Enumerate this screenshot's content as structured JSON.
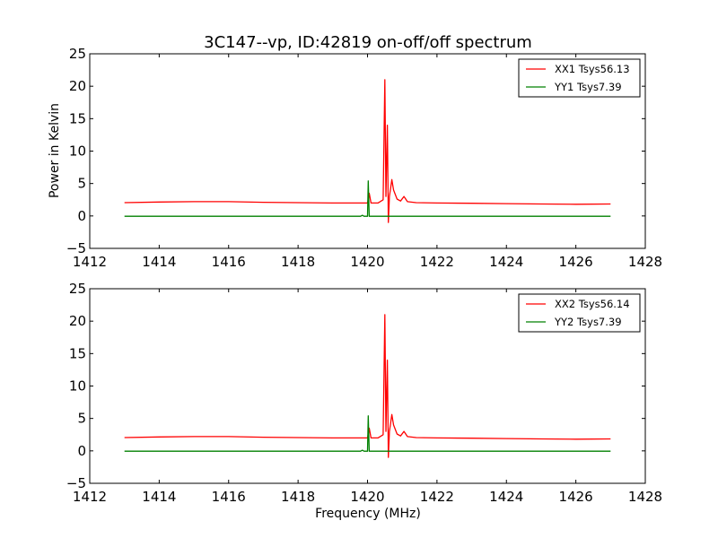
{
  "figure": {
    "title": "3C147--vp, ID:42819 on-off/off spectrum",
    "ylabel": "Power in Kelvin",
    "xlabel": "Frequency (MHz)",
    "colors": {
      "red": "#ff0000",
      "green": "#008000"
    }
  },
  "chart_data": [
    {
      "type": "line",
      "title": "3C147--vp, ID:42819 on-off/off spectrum",
      "xlabel": "",
      "ylabel": "Power in Kelvin",
      "xlim": [
        1412,
        1428
      ],
      "ylim": [
        -5,
        25
      ],
      "xticks": [
        1412,
        1414,
        1416,
        1418,
        1420,
        1422,
        1424,
        1426,
        1428
      ],
      "yticks": [
        -5,
        0,
        5,
        10,
        15,
        20,
        25
      ],
      "grid": false,
      "legend_position": "top-right",
      "series": [
        {
          "name": "XX1 Tsys56.13",
          "color": "#ff0000",
          "points": [
            [
              1413.0,
              2.05
            ],
            [
              1414.0,
              2.15
            ],
            [
              1415.0,
              2.2
            ],
            [
              1416.0,
              2.2
            ],
            [
              1417.0,
              2.1
            ],
            [
              1418.0,
              2.05
            ],
            [
              1419.0,
              2.0
            ],
            [
              1419.8,
              2.0
            ],
            [
              1420.0,
              2.0
            ],
            [
              1420.05,
              3.5
            ],
            [
              1420.1,
              2.0
            ],
            [
              1420.3,
              2.0
            ],
            [
              1420.45,
              2.5
            ],
            [
              1420.5,
              21.0
            ],
            [
              1420.53,
              3.0
            ],
            [
              1420.57,
              14.0
            ],
            [
              1420.6,
              -1.0
            ],
            [
              1420.63,
              3.0
            ],
            [
              1420.7,
              5.6
            ],
            [
              1420.75,
              4.0
            ],
            [
              1420.85,
              2.6
            ],
            [
              1420.95,
              2.3
            ],
            [
              1421.05,
              3.0
            ],
            [
              1421.15,
              2.2
            ],
            [
              1421.4,
              2.05
            ],
            [
              1422.0,
              2.0
            ],
            [
              1423.0,
              1.95
            ],
            [
              1424.0,
              1.9
            ],
            [
              1425.0,
              1.85
            ],
            [
              1426.0,
              1.8
            ],
            [
              1427.0,
              1.85
            ]
          ]
        },
        {
          "name": "YY1 Tsys7.39",
          "color": "#008000",
          "points": [
            [
              1413.0,
              -0.05
            ],
            [
              1415.0,
              -0.05
            ],
            [
              1417.0,
              -0.05
            ],
            [
              1419.0,
              -0.05
            ],
            [
              1419.8,
              -0.05
            ],
            [
              1419.85,
              0.1
            ],
            [
              1419.9,
              -0.05
            ],
            [
              1420.0,
              -0.05
            ],
            [
              1420.02,
              5.4
            ],
            [
              1420.05,
              -0.05
            ],
            [
              1420.5,
              -0.05
            ],
            [
              1422.0,
              -0.05
            ],
            [
              1424.0,
              -0.05
            ],
            [
              1426.0,
              -0.05
            ],
            [
              1427.0,
              -0.05
            ]
          ]
        }
      ]
    },
    {
      "type": "line",
      "title": "",
      "xlabel": "Frequency (MHz)",
      "ylabel": "",
      "xlim": [
        1412,
        1428
      ],
      "ylim": [
        -5,
        25
      ],
      "xticks": [
        1412,
        1414,
        1416,
        1418,
        1420,
        1422,
        1424,
        1426,
        1428
      ],
      "yticks": [
        -5,
        0,
        5,
        10,
        15,
        20,
        25
      ],
      "grid": false,
      "legend_position": "top-right",
      "series": [
        {
          "name": "XX2 Tsys56.14",
          "color": "#ff0000",
          "points": [
            [
              1413.0,
              2.05
            ],
            [
              1414.0,
              2.15
            ],
            [
              1415.0,
              2.2
            ],
            [
              1416.0,
              2.2
            ],
            [
              1417.0,
              2.1
            ],
            [
              1418.0,
              2.05
            ],
            [
              1419.0,
              2.0
            ],
            [
              1419.8,
              2.0
            ],
            [
              1420.0,
              2.0
            ],
            [
              1420.05,
              3.5
            ],
            [
              1420.1,
              2.0
            ],
            [
              1420.3,
              2.0
            ],
            [
              1420.45,
              2.5
            ],
            [
              1420.5,
              21.0
            ],
            [
              1420.53,
              3.0
            ],
            [
              1420.57,
              14.0
            ],
            [
              1420.6,
              -1.0
            ],
            [
              1420.63,
              3.0
            ],
            [
              1420.7,
              5.6
            ],
            [
              1420.75,
              4.0
            ],
            [
              1420.85,
              2.6
            ],
            [
              1420.95,
              2.3
            ],
            [
              1421.05,
              3.0
            ],
            [
              1421.15,
              2.2
            ],
            [
              1421.4,
              2.05
            ],
            [
              1422.0,
              2.0
            ],
            [
              1423.0,
              1.95
            ],
            [
              1424.0,
              1.9
            ],
            [
              1425.0,
              1.85
            ],
            [
              1426.0,
              1.8
            ],
            [
              1427.0,
              1.85
            ]
          ]
        },
        {
          "name": "YY2 Tsys7.39",
          "color": "#008000",
          "points": [
            [
              1413.0,
              -0.05
            ],
            [
              1415.0,
              -0.05
            ],
            [
              1417.0,
              -0.05
            ],
            [
              1419.0,
              -0.05
            ],
            [
              1419.8,
              -0.05
            ],
            [
              1419.85,
              0.1
            ],
            [
              1419.9,
              -0.05
            ],
            [
              1420.0,
              -0.05
            ],
            [
              1420.02,
              5.4
            ],
            [
              1420.05,
              -0.05
            ],
            [
              1420.5,
              -0.05
            ],
            [
              1422.0,
              -0.05
            ],
            [
              1424.0,
              -0.05
            ],
            [
              1426.0,
              -0.05
            ],
            [
              1427.0,
              -0.05
            ]
          ]
        }
      ]
    }
  ]
}
